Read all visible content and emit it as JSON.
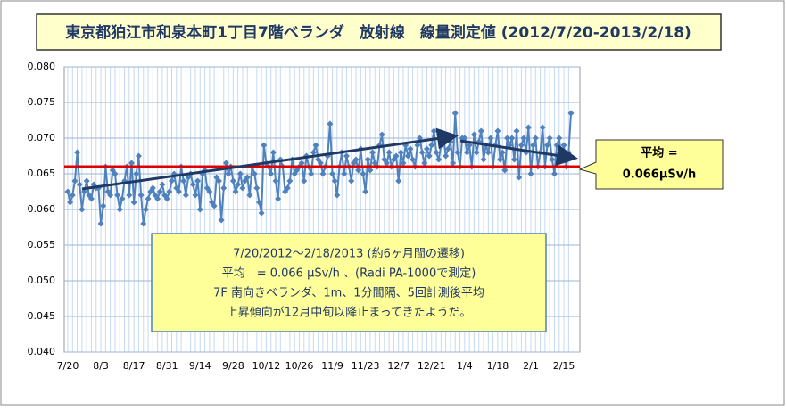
{
  "chart_data": {
    "type": "line",
    "title": "東京都狛江市和泉本町1丁目7階ベランダ　放射線　線量測定値 (2012/7/20-2013/2/18)",
    "categories": [
      "7/20",
      null,
      null,
      null,
      null,
      null,
      null,
      null,
      null,
      null,
      null,
      null,
      null,
      null,
      "8/3",
      null,
      null,
      null,
      null,
      null,
      null,
      null,
      null,
      null,
      null,
      null,
      null,
      null,
      "8/17",
      null,
      null,
      null,
      null,
      null,
      null,
      null,
      null,
      null,
      null,
      null,
      null,
      null,
      "8/31",
      null,
      null,
      null,
      null,
      null,
      null,
      null,
      null,
      null,
      null,
      null,
      null,
      null,
      "9/14",
      null,
      null,
      null,
      null,
      null,
      null,
      null,
      null,
      null,
      null,
      null,
      null,
      null,
      "9/28",
      null,
      null,
      null,
      null,
      null,
      null,
      null,
      null,
      null,
      null,
      null,
      null,
      null,
      "10/12",
      null,
      null,
      null,
      null,
      null,
      null,
      null,
      null,
      null,
      null,
      null,
      null,
      null,
      "10/26",
      null,
      null,
      null,
      null,
      null,
      null,
      null,
      null,
      null,
      null,
      null,
      null,
      null,
      "11/9",
      null,
      null,
      null,
      null,
      null,
      null,
      null,
      null,
      null,
      null,
      null,
      null,
      null,
      "11/23",
      null,
      null,
      null,
      null,
      null,
      null,
      null,
      null,
      null,
      null,
      null,
      null,
      null,
      "12/7",
      null,
      null,
      null,
      null,
      null,
      null,
      null,
      null,
      null,
      null,
      null,
      null,
      null,
      "12/21",
      null,
      null,
      null,
      null,
      null,
      null,
      null,
      null,
      null,
      null,
      null,
      null,
      null,
      "1/4",
      null,
      null,
      null,
      null,
      null,
      null,
      null,
      null,
      null,
      null,
      null,
      null,
      null,
      "1/18",
      null,
      null,
      null,
      null,
      null,
      null,
      null,
      null,
      null,
      null,
      null,
      null,
      null,
      "2/1",
      null,
      null,
      null,
      null,
      null,
      null,
      null,
      null,
      null,
      null,
      null,
      null,
      null,
      "2/15",
      null,
      null,
      null
    ],
    "series": [
      {
        "color": "#4f81bd",
        "values": [
          0.0625,
          0.061,
          0.062,
          0.064,
          0.068,
          0.0635,
          0.06,
          0.0625,
          0.064,
          0.062,
          0.0615,
          0.0635,
          0.063,
          0.063,
          0.058,
          0.0605,
          0.066,
          0.0625,
          0.062,
          0.0655,
          0.065,
          0.062,
          0.06,
          0.0615,
          0.064,
          0.066,
          0.062,
          0.0665,
          0.061,
          0.065,
          0.0675,
          0.062,
          0.058,
          0.06,
          0.0615,
          0.0625,
          0.063,
          0.062,
          0.0615,
          0.0625,
          0.0635,
          0.062,
          0.0615,
          0.0625,
          0.064,
          0.065,
          0.063,
          0.0625,
          0.066,
          0.064,
          0.062,
          0.0645,
          0.065,
          0.0635,
          0.062,
          0.064,
          0.06,
          0.065,
          0.0655,
          0.063,
          0.0625,
          0.061,
          0.0605,
          0.0645,
          0.064,
          0.0585,
          0.063,
          0.0665,
          0.065,
          0.066,
          0.064,
          0.0625,
          0.0635,
          0.065,
          0.063,
          0.064,
          0.0645,
          0.062,
          0.066,
          0.065,
          0.063,
          0.061,
          0.0595,
          0.069,
          0.0665,
          0.066,
          0.065,
          0.068,
          0.064,
          0.0615,
          0.067,
          0.066,
          0.0625,
          0.063,
          0.064,
          0.067,
          0.065,
          0.0655,
          0.066,
          0.0665,
          0.064,
          0.0675,
          0.066,
          0.065,
          0.068,
          0.069,
          0.067,
          0.0665,
          0.065,
          0.066,
          0.0675,
          0.072,
          0.065,
          0.064,
          0.062,
          0.066,
          0.068,
          0.065,
          0.0675,
          0.066,
          0.064,
          0.0665,
          0.067,
          0.0655,
          0.0685,
          0.065,
          0.0625,
          0.067,
          0.0655,
          0.068,
          0.0665,
          0.066,
          0.069,
          0.0705,
          0.067,
          0.0665,
          0.068,
          0.066,
          0.067,
          0.0675,
          0.064,
          0.068,
          0.0665,
          0.069,
          0.0675,
          0.0685,
          0.067,
          0.066,
          0.069,
          0.07,
          0.068,
          0.0665,
          0.0685,
          0.0675,
          0.069,
          0.071,
          0.068,
          0.067,
          0.069,
          0.07,
          0.0675,
          0.0685,
          0.0695,
          0.0665,
          0.0735,
          0.068,
          0.066,
          0.07,
          0.07,
          0.068,
          0.069,
          0.066,
          0.0705,
          0.068,
          0.0695,
          0.071,
          0.067,
          0.069,
          0.068,
          0.07,
          0.066,
          0.069,
          0.071,
          0.067,
          0.068,
          0.0655,
          0.07,
          0.069,
          0.07,
          0.067,
          0.071,
          0.0645,
          0.069,
          0.07,
          0.068,
          0.0715,
          0.065,
          0.069,
          0.07,
          0.066,
          0.068,
          0.0715,
          0.066,
          0.069,
          0.07,
          0.067,
          0.065,
          0.069,
          0.07,
          0.067,
          0.069,
          0.066,
          0.068,
          0.0735
        ]
      }
    ],
    "ylim": [
      0.04,
      0.08
    ],
    "yticks": [
      {
        "value": 0.04,
        "label": "0.040"
      },
      {
        "value": 0.045,
        "label": "0.045"
      },
      {
        "value": 0.05,
        "label": "0.050"
      },
      {
        "value": 0.055,
        "label": "0.055"
      },
      {
        "value": 0.06,
        "label": "0.060"
      },
      {
        "value": 0.065,
        "label": "0.065"
      },
      {
        "value": 0.07,
        "label": "0.070"
      },
      {
        "value": 0.075,
        "label": "0.075"
      },
      {
        "value": 0.08,
        "label": "0.080"
      }
    ],
    "grid": true,
    "average": {
      "value": 0.066,
      "color": "#e00000",
      "label_lines": [
        "平均 =",
        "0.066μSv/h"
      ]
    },
    "note_lines": [
      "7/20/2012～2/18/2013 (約6ヶ月間の遷移)",
      "平均　= 0.066 μSv/h 、(Radi PA-1000で測定)",
      "7F 南向きベランダ、1m、1分間隔、5回計測後平均",
      "上昇傾向が12月中旬以降止まってきたようだ。"
    ]
  }
}
